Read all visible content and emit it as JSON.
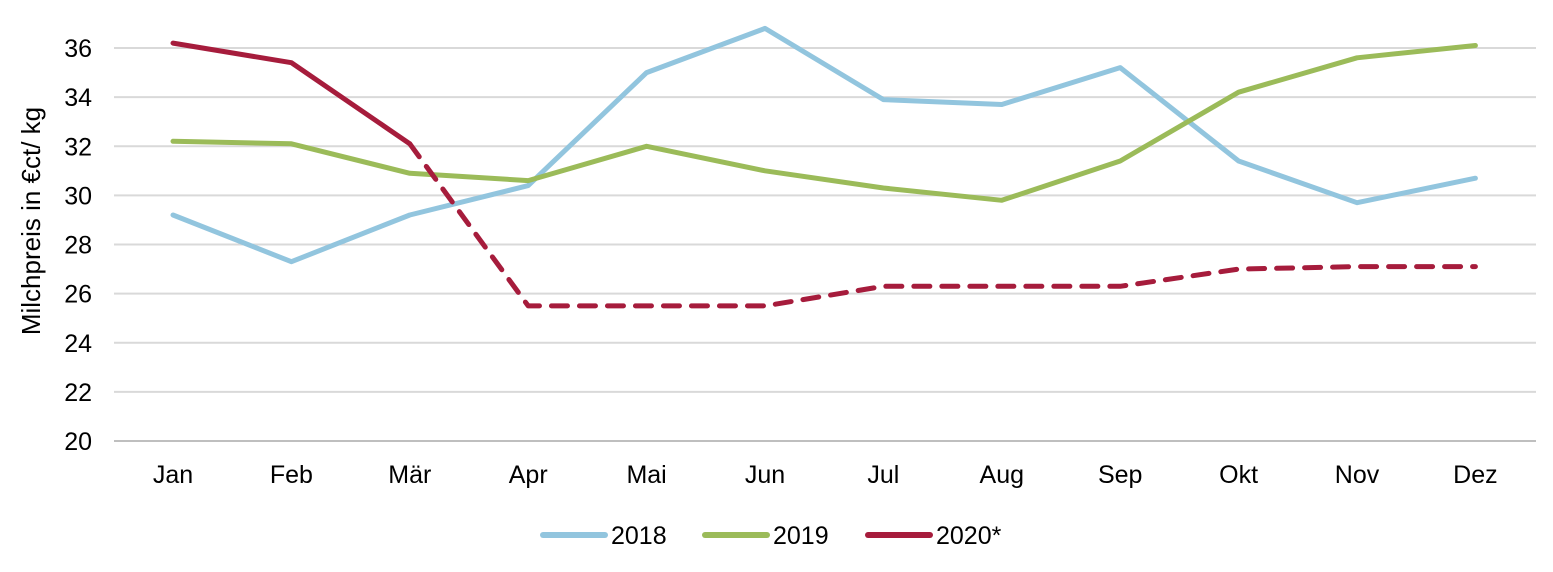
{
  "chart_data": {
    "type": "line",
    "title": "",
    "xlabel": "",
    "ylabel": "Milchpreis in €ct/ kg",
    "ylim": [
      20,
      36
    ],
    "yticks": [
      20,
      22,
      24,
      26,
      28,
      30,
      32,
      34,
      36
    ],
    "grid": true,
    "legend_position": "bottom",
    "categories": [
      "Jan",
      "Feb",
      "Mär",
      "Apr",
      "Mai",
      "Jun",
      "Jul",
      "Aug",
      "Sep",
      "Okt",
      "Nov",
      "Dez"
    ],
    "series": [
      {
        "name": "2018",
        "color": "#92c5de",
        "values": [
          29.2,
          27.3,
          29.2,
          30.4,
          35.0,
          36.8,
          33.9,
          33.7,
          35.2,
          31.4,
          29.7,
          30.7
        ]
      },
      {
        "name": "2019",
        "color": "#9bbb59",
        "values": [
          32.2,
          32.1,
          30.9,
          30.6,
          32.0,
          31.0,
          30.3,
          29.8,
          31.4,
          34.2,
          35.6,
          36.1
        ]
      },
      {
        "name": "2020*",
        "color": "#a61c3c",
        "values": [
          36.2,
          35.4,
          32.1,
          25.5,
          25.5,
          25.5,
          26.3,
          26.3,
          26.3,
          27.0,
          27.1,
          27.1
        ],
        "solid_through_index": 2
      }
    ]
  }
}
